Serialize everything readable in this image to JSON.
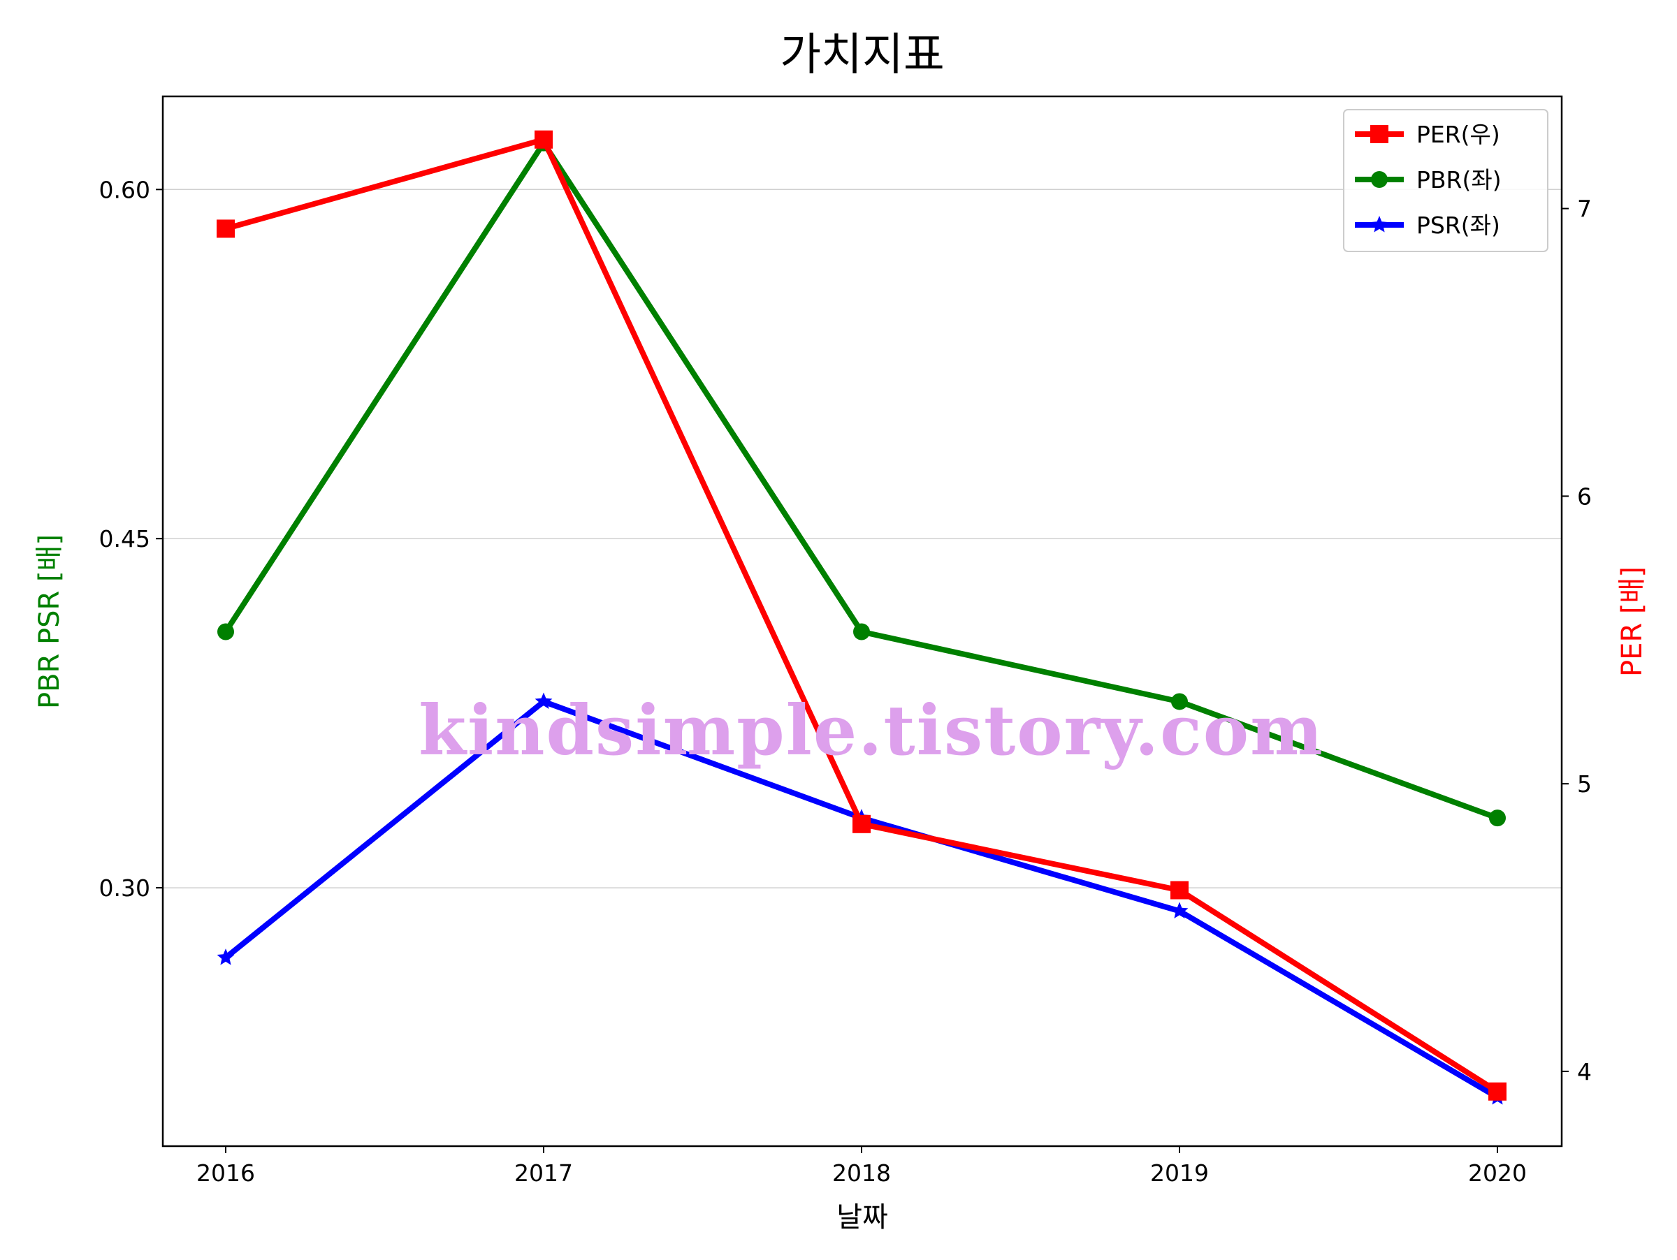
{
  "chart_data": {
    "type": "line",
    "title": "가치지표",
    "xlabel": "날짜",
    "ylabel_left": "PBR PSR [배]",
    "ylabel_right": "PER [배]",
    "categories": [
      "2016",
      "2017",
      "2018",
      "2019",
      "2020"
    ],
    "ylim_left": [
      0.189,
      0.64
    ],
    "ylim_right": [
      3.74,
      7.39
    ],
    "yticks_left": [
      "0.30",
      "0.45",
      "0.60"
    ],
    "yticks_right": [
      "4",
      "5",
      "6",
      "7"
    ],
    "grid": "horizontal (left axis)",
    "legend_position": "top-right",
    "series": [
      {
        "name": "PER(우)",
        "axis": "right",
        "color": "#ff0000",
        "marker": "square",
        "values": [
          6.93,
          7.24,
          4.86,
          4.63,
          3.93
        ]
      },
      {
        "name": "PBR(좌)",
        "axis": "left",
        "color": "#008000",
        "marker": "circle",
        "values": [
          0.41,
          0.62,
          0.41,
          0.38,
          0.33
        ]
      },
      {
        "name": "PSR(좌)",
        "axis": "left",
        "color": "#0000ff",
        "marker": "star",
        "values": [
          0.27,
          0.38,
          0.33,
          0.29,
          0.21
        ]
      }
    ],
    "watermark": "kindsimple.tistory.com",
    "watermark_color": "#dda0ec",
    "left_label_color": "#008000",
    "right_label_color": "#ff0000"
  }
}
